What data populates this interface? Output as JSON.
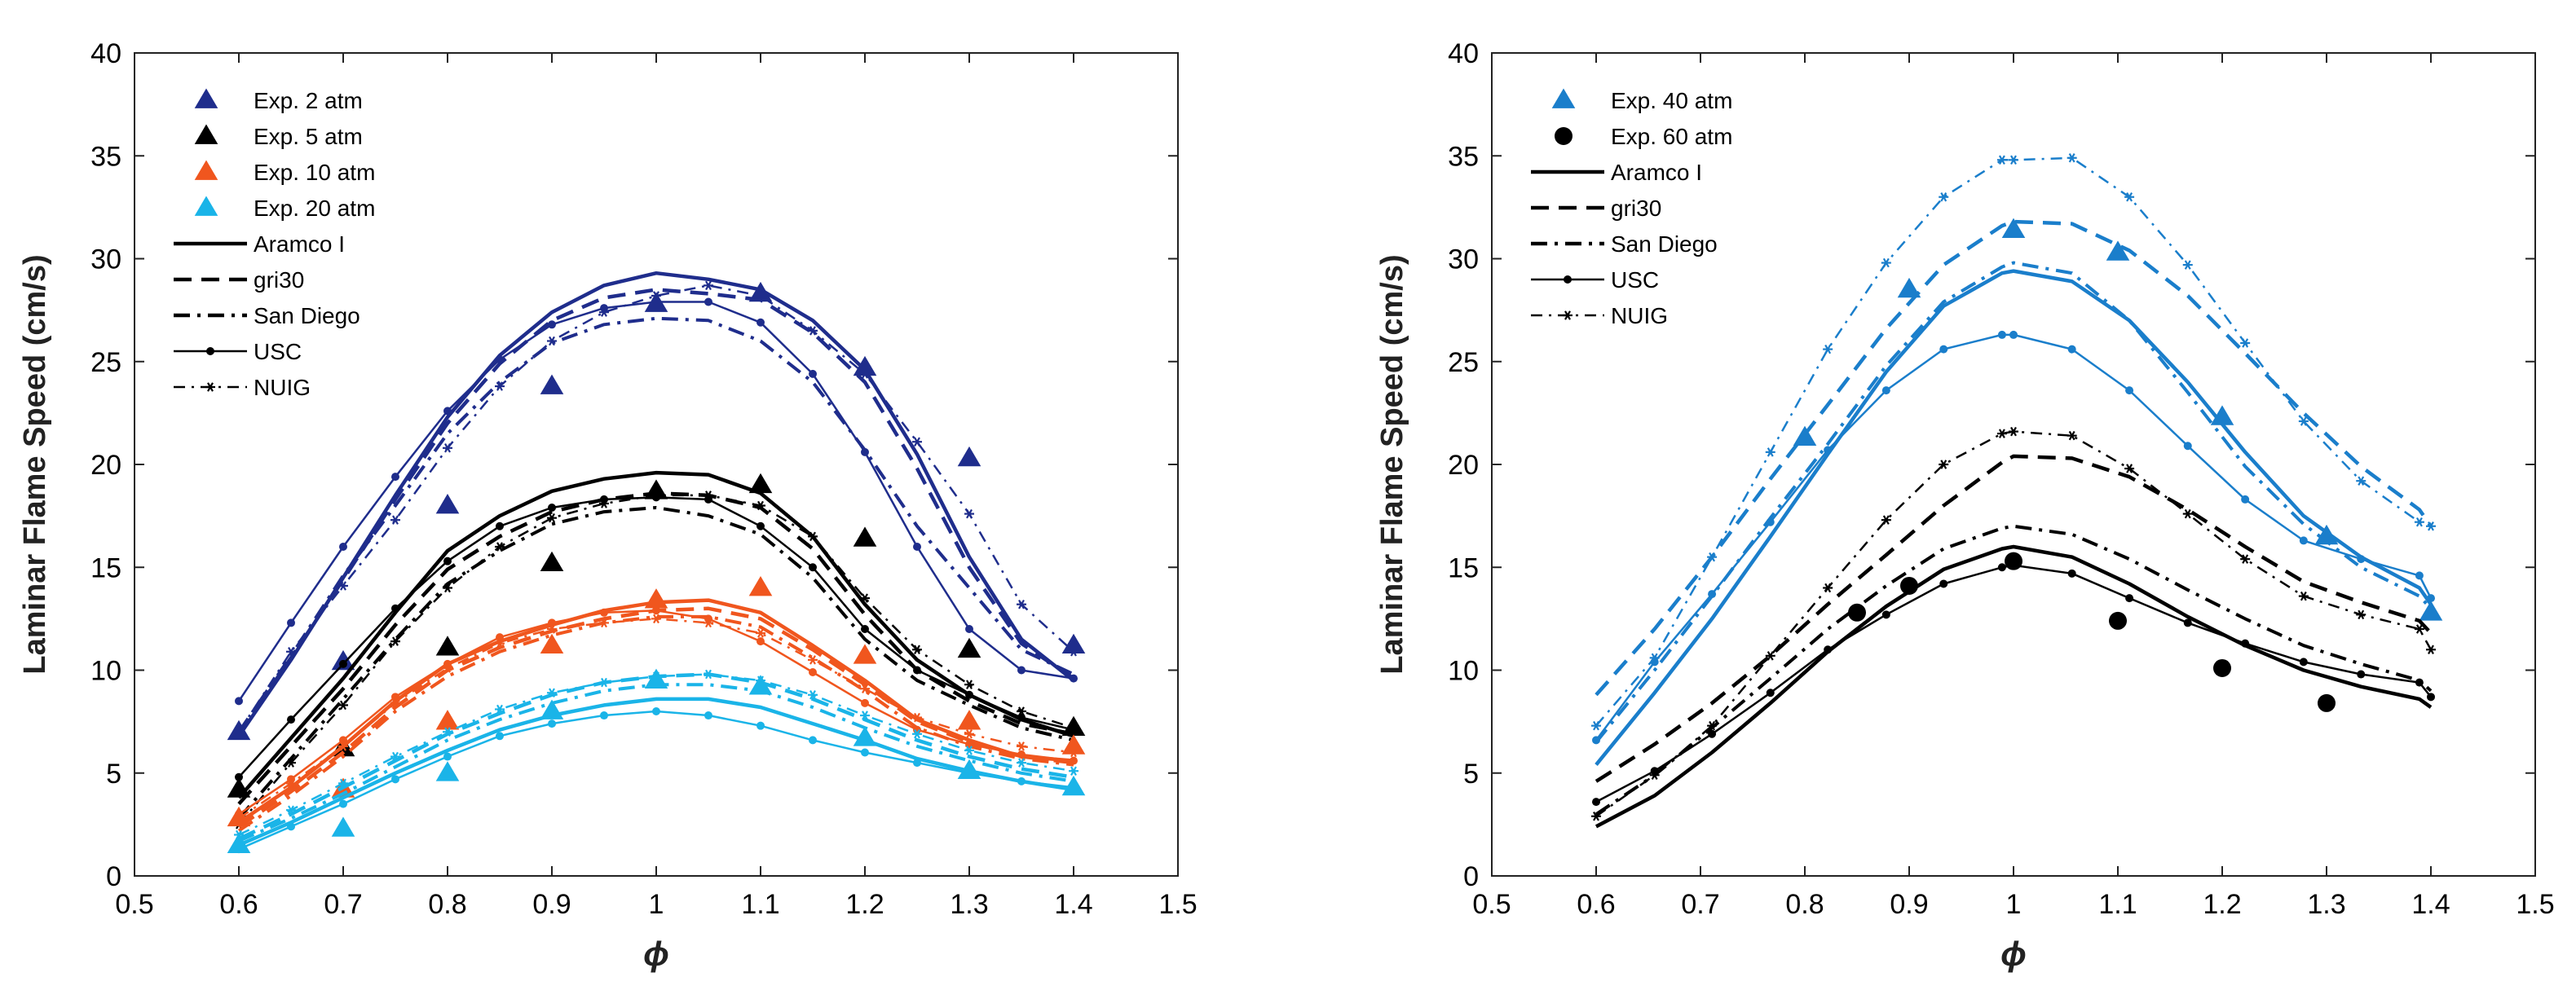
{
  "chart_data": [
    {
      "type": "line",
      "xlabel": "ϕ",
      "ylabel": "Laminar Flame Speed (cm/s)",
      "xlim": [
        0.5,
        1.5
      ],
      "ylim": [
        0,
        40
      ],
      "xticks": [
        "0.5",
        "0.6",
        "0.7",
        "0.8",
        "0.9",
        "1",
        "1.1",
        "1.2",
        "1.3",
        "1.4",
        "1.5"
      ],
      "yticks": [
        "0",
        "5",
        "10",
        "15",
        "20",
        "25",
        "30",
        "35",
        "40"
      ],
      "grid": false,
      "legend_position": "top-left",
      "legend": [
        {
          "label": "Exp. 2 atm",
          "marker": "triangle",
          "color": "#1f2d8c"
        },
        {
          "label": "Exp. 5 atm",
          "marker": "triangle",
          "color": "#000000"
        },
        {
          "label": "Exp. 10 atm",
          "marker": "triangle",
          "color": "#f0561e"
        },
        {
          "label": "Exp. 20 atm",
          "marker": "triangle",
          "color": "#1ab4e8"
        },
        {
          "label": "Aramco I",
          "style": "solid",
          "color": "#000000"
        },
        {
          "label": "gri30",
          "style": "dashed",
          "color": "#000000"
        },
        {
          "label": "San Diego",
          "style": "dashdot",
          "color": "#000000"
        },
        {
          "label": "USC",
          "style": "solid-dot",
          "color": "#000000"
        },
        {
          "label": "NUIG",
          "style": "dashdot-star",
          "color": "#000000"
        }
      ],
      "x": [
        0.6,
        0.65,
        0.7,
        0.75,
        0.8,
        0.85,
        0.9,
        0.95,
        1.0,
        1.05,
        1.1,
        1.15,
        1.2,
        1.25,
        1.3,
        1.35,
        1.4
      ],
      "groups": [
        {
          "color": "#1f2d8c",
          "experiment": {
            "x": [
              0.6,
              0.7,
              0.8,
              0.9,
              1.0,
              1.1,
              1.2,
              1.3,
              1.4
            ],
            "y": [
              7.0,
              10.4,
              18.0,
              23.8,
              27.8,
              28.3,
              24.7,
              20.3,
              11.2
            ]
          },
          "models": {
            "aramco": [
              6.8,
              10.5,
              14.5,
              18.5,
              22.3,
              25.3,
              27.4,
              28.7,
              29.3,
              29.0,
              28.5,
              27.0,
              24.6,
              20.5,
              15.5,
              11.5,
              9.5
            ],
            "gri30": [
              6.9,
              10.6,
              14.4,
              18.3,
              22.0,
              24.9,
              27.0,
              28.1,
              28.5,
              28.3,
              28.0,
              26.4,
              24.0,
              19.8,
              15.0,
              11.3,
              9.6
            ],
            "sandiego": [
              7.0,
              10.7,
              14.6,
              18.0,
              21.5,
              24.0,
              25.9,
              26.8,
              27.1,
              27.0,
              26.0,
              24.0,
              20.7,
              17.0,
              14.0,
              11.0,
              9.8
            ],
            "usc": [
              8.5,
              12.3,
              16.0,
              19.4,
              22.6,
              25.1,
              26.8,
              27.6,
              27.9,
              27.9,
              26.9,
              24.4,
              20.6,
              16.0,
              12.0,
              10.0,
              9.6
            ],
            "nuig": [
              7.0,
              10.9,
              14.1,
              17.3,
              20.8,
              23.8,
              26.0,
              27.4,
              28.2,
              28.7,
              28.2,
              26.5,
              24.4,
              21.1,
              17.6,
              13.2,
              10.9
            ]
          }
        },
        {
          "color": "#000000",
          "experiment": {
            "x": [
              0.6,
              0.7,
              0.8,
              0.9,
              1.0,
              1.1,
              1.2,
              1.3,
              1.4
            ],
            "y": [
              4.2,
              6.2,
              11.1,
              15.2,
              18.7,
              19.0,
              16.4,
              11.0,
              7.2
            ]
          },
          "models": {
            "aramco": [
              3.8,
              6.7,
              9.6,
              12.8,
              15.8,
              17.5,
              18.7,
              19.3,
              19.6,
              19.5,
              18.6,
              16.5,
              13.2,
              10.5,
              8.8,
              7.6,
              6.8
            ],
            "gri30": [
              3.5,
              6.3,
              9.1,
              12.2,
              14.9,
              16.5,
              17.7,
              18.3,
              18.6,
              18.5,
              17.9,
              15.9,
              12.7,
              10.0,
              8.5,
              7.4,
              6.9
            ],
            "sandiego": [
              2.8,
              5.7,
              8.6,
              11.5,
              14.2,
              15.8,
              17.1,
              17.7,
              17.9,
              17.5,
              16.6,
              14.5,
              11.5,
              9.5,
              8.3,
              7.2,
              6.6
            ],
            "usc": [
              4.8,
              7.6,
              10.3,
              13.0,
              15.3,
              17.0,
              17.9,
              18.3,
              18.4,
              18.3,
              17.0,
              15.0,
              12.0,
              10.0,
              8.8,
              7.7,
              7.1
            ],
            "nuig": [
              2.5,
              5.5,
              8.3,
              11.4,
              14.0,
              16.0,
              17.4,
              18.1,
              18.5,
              18.5,
              18.0,
              16.5,
              13.5,
              11.0,
              9.3,
              8.0,
              7.2
            ]
          }
        },
        {
          "color": "#f0561e",
          "experiment": {
            "x": [
              0.6,
              0.7,
              0.8,
              0.9,
              1.0,
              1.1,
              1.2,
              1.3,
              1.4
            ],
            "y": [
              2.8,
              4.2,
              7.5,
              11.2,
              13.4,
              14.0,
              10.7,
              7.5,
              6.3
            ]
          },
          "models": {
            "aramco": [
              2.6,
              4.3,
              6.3,
              8.5,
              10.3,
              11.4,
              12.2,
              12.9,
              13.3,
              13.4,
              12.8,
              11.2,
              9.5,
              7.6,
              6.6,
              5.8,
              5.6
            ],
            "gri30": [
              2.4,
              4.1,
              6.0,
              8.2,
              10.0,
              11.1,
              11.9,
              12.5,
              12.9,
              13.0,
              12.5,
              11.0,
              9.3,
              7.5,
              6.5,
              5.8,
              5.5
            ],
            "sandiego": [
              2.2,
              3.9,
              5.8,
              8.0,
              9.7,
              10.9,
              11.7,
              12.3,
              12.6,
              12.6,
              12.1,
              10.6,
              9.0,
              7.2,
              6.3,
              5.7,
              5.4
            ],
            "usc": [
              3.0,
              4.7,
              6.6,
              8.7,
              10.3,
              11.6,
              12.3,
              12.8,
              12.9,
              12.5,
              11.4,
              9.9,
              8.4,
              7.1,
              6.4,
              5.9,
              5.6
            ],
            "nuig": [
              2.8,
              4.5,
              6.3,
              8.4,
              10.1,
              11.3,
              12.0,
              12.3,
              12.5,
              12.3,
              11.8,
              10.5,
              9.1,
              7.7,
              6.9,
              6.3,
              6.0
            ]
          }
        },
        {
          "color": "#1ab4e8",
          "experiment": {
            "x": [
              0.6,
              0.7,
              0.8,
              0.9,
              1.0,
              1.1,
              1.2,
              1.3,
              1.4
            ],
            "y": [
              1.5,
              2.3,
              5.0,
              8.0,
              9.5,
              9.2,
              6.7,
              5.1,
              4.3
            ]
          },
          "models": {
            "aramco": [
              1.5,
              2.6,
              3.8,
              5.0,
              6.1,
              7.1,
              7.8,
              8.3,
              8.6,
              8.6,
              8.2,
              7.4,
              6.6,
              5.7,
              5.1,
              4.6,
              4.2
            ],
            "gri30": [
              1.8,
              3.0,
              4.3,
              5.6,
              6.9,
              7.9,
              8.8,
              9.4,
              9.7,
              9.8,
              9.4,
              8.6,
              7.6,
              6.6,
              5.8,
              5.2,
              4.8
            ],
            "sandiego": [
              1.7,
              2.8,
              4.0,
              5.3,
              6.6,
              7.6,
              8.4,
              9.0,
              9.3,
              9.3,
              9.0,
              8.2,
              7.2,
              6.3,
              5.6,
              5.0,
              4.6
            ],
            "usc": [
              1.3,
              2.4,
              3.5,
              4.7,
              5.8,
              6.8,
              7.4,
              7.8,
              8.0,
              7.8,
              7.3,
              6.6,
              6.0,
              5.5,
              5.0,
              4.6,
              4.3
            ],
            "nuig": [
              2.0,
              3.2,
              4.5,
              5.8,
              7.0,
              8.1,
              8.9,
              9.4,
              9.7,
              9.8,
              9.5,
              8.8,
              7.8,
              6.9,
              6.1,
              5.5,
              5.1
            ]
          }
        }
      ]
    },
    {
      "type": "line",
      "xlabel": "ϕ",
      "ylabel": "Laminar Flame Speed (cm/s)",
      "xlim": [
        0.5,
        1.5
      ],
      "ylim": [
        0,
        40
      ],
      "xticks": [
        "0.5",
        "0.6",
        "0.7",
        "0.8",
        "0.9",
        "1",
        "1.1",
        "1.2",
        "1.3",
        "1.4",
        "1.5"
      ],
      "yticks": [
        "0",
        "5",
        "10",
        "15",
        "20",
        "25",
        "30",
        "35",
        "40"
      ],
      "grid": false,
      "legend_position": "top-left",
      "legend": [
        {
          "label": "Exp. 40 atm",
          "marker": "triangle",
          "color": "#1a7ecb"
        },
        {
          "label": "Exp. 60 atm",
          "marker": "circle",
          "color": "#000000"
        },
        {
          "label": "Aramco I",
          "style": "solid",
          "color": "#000000"
        },
        {
          "label": "gri30",
          "style": "dashed",
          "color": "#000000"
        },
        {
          "label": "San Diego",
          "style": "dashdot",
          "color": "#000000"
        },
        {
          "label": "USC",
          "style": "solid-dot",
          "color": "#000000"
        },
        {
          "label": "NUIG",
          "style": "dashdot-star",
          "color": "#000000"
        }
      ],
      "x": [
        0.6,
        0.656,
        0.711,
        0.767,
        0.822,
        0.878,
        0.933,
        0.989,
        1.0,
        1.056,
        1.111,
        1.167,
        1.222,
        1.278,
        1.333,
        1.389,
        1.4
      ],
      "groups": [
        {
          "color": "#1a7ecb",
          "experiment": {
            "x": [
              0.8,
              0.9,
              1.0,
              1.1,
              1.2,
              1.3,
              1.4
            ],
            "y": [
              21.3,
              28.5,
              31.4,
              30.3,
              22.3,
              16.5,
              12.8
            ]
          },
          "models": {
            "aramco": [
              5.4,
              8.9,
              12.5,
              16.5,
              20.5,
              24.5,
              27.7,
              29.3,
              29.4,
              28.9,
              27.0,
              24.0,
              20.6,
              17.5,
              15.5,
              14.0,
              13.2
            ],
            "gri30": [
              8.8,
              12.0,
              15.5,
              19.3,
              22.9,
              26.6,
              29.7,
              31.6,
              31.8,
              31.7,
              30.4,
              28.2,
              25.4,
              22.5,
              19.9,
              17.8,
              17.0
            ],
            "sandiego": [
              6.5,
              10.0,
              13.6,
              17.4,
              21.0,
              24.8,
              27.9,
              29.6,
              29.8,
              29.3,
              27.0,
              23.5,
              19.9,
              17.1,
              15.0,
              13.6,
              13.0
            ],
            "usc": [
              6.6,
              10.4,
              13.7,
              17.2,
              20.7,
              23.6,
              25.6,
              26.3,
              26.3,
              25.6,
              23.6,
              20.9,
              18.3,
              16.3,
              15.4,
              14.6,
              13.5
            ],
            "nuig": [
              7.3,
              10.6,
              15.5,
              20.6,
              25.6,
              29.8,
              33.0,
              34.8,
              34.8,
              34.9,
              33.0,
              29.7,
              25.9,
              22.1,
              19.2,
              17.2,
              17.0
            ]
          }
        },
        {
          "color": "#000000",
          "experiment": {
            "x": [
              0.85,
              0.9,
              1.0,
              1.1,
              1.2,
              1.3
            ],
            "y": [
              12.8,
              14.1,
              15.3,
              12.4,
              10.1,
              8.4
            ]
          },
          "models": {
            "aramco": [
              2.4,
              3.9,
              6.0,
              8.4,
              10.9,
              13.1,
              14.9,
              15.9,
              16.0,
              15.5,
              14.2,
              12.6,
              11.2,
              10.0,
              9.2,
              8.6,
              8.2
            ],
            "gri30": [
              4.6,
              6.4,
              8.4,
              10.7,
              13.2,
              15.6,
              18.0,
              20.1,
              20.4,
              20.3,
              19.4,
              17.8,
              16.0,
              14.3,
              13.3,
              12.4,
              11.8
            ],
            "sandiego": [
              3.0,
              4.9,
              7.2,
              9.6,
              12.0,
              14.1,
              15.9,
              16.9,
              17.0,
              16.6,
              15.4,
              13.9,
              12.5,
              11.2,
              10.3,
              9.5,
              9.0
            ],
            "usc": [
              3.6,
              5.1,
              6.9,
              8.9,
              11.0,
              12.7,
              14.2,
              15.0,
              15.1,
              14.7,
              13.5,
              12.3,
              11.3,
              10.4,
              9.8,
              9.4,
              8.7
            ],
            "nuig": [
              2.9,
              4.9,
              7.3,
              10.7,
              14.0,
              17.3,
              20.0,
              21.5,
              21.6,
              21.4,
              19.8,
              17.6,
              15.4,
              13.6,
              12.7,
              12.0,
              11.0
            ]
          }
        }
      ]
    }
  ]
}
